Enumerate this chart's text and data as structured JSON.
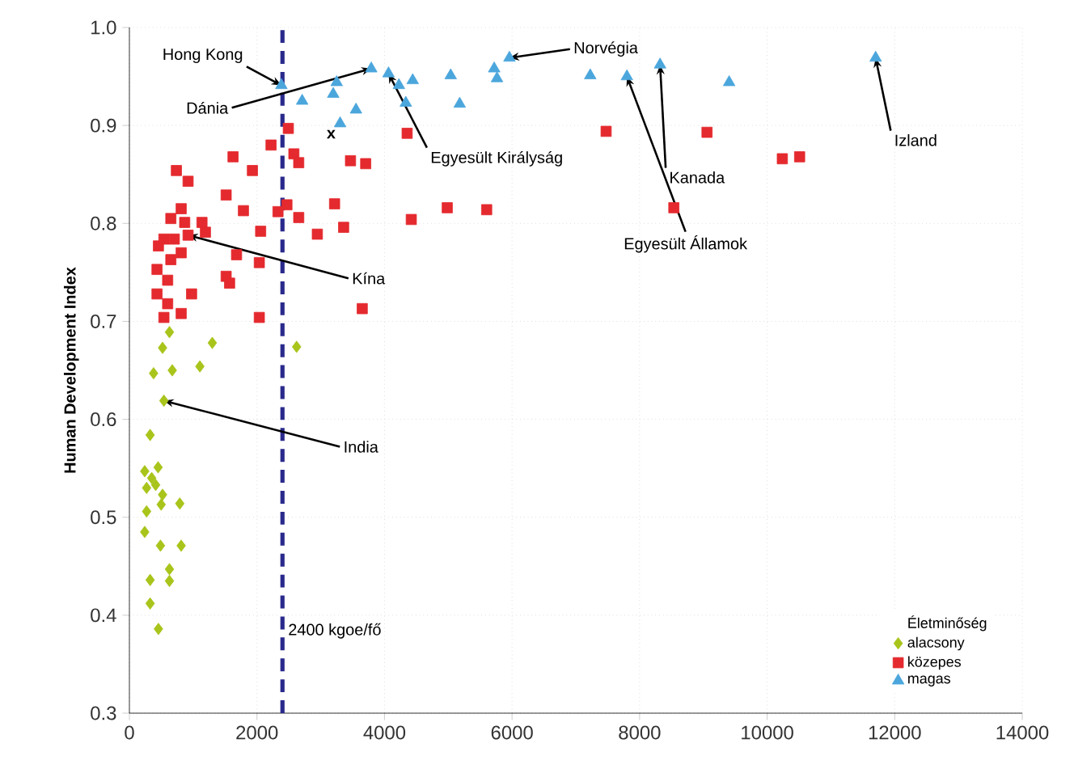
{
  "chart_data": {
    "type": "scatter",
    "ylabel": "Human Development Index",
    "legend_title": "Életminőség",
    "legend": "bottom right",
    "grid": true,
    "xlim": [
      0,
      14000
    ],
    "xticks": [
      0,
      2000,
      4000,
      6000,
      8000,
      10000,
      12000,
      14000
    ],
    "ylim": [
      0.3,
      1.0
    ],
    "yticks": [
      0.3,
      0.4,
      0.5,
      0.6,
      0.7,
      0.8,
      0.9,
      {
        "value": 1.0,
        "label": "1.0"
      }
    ],
    "ref_lines": [
      {
        "axis": "x",
        "value": 2400,
        "label": "2400 kgoe/fő",
        "color": "#2a2a8c",
        "line_style": "dashed"
      }
    ],
    "series": [
      {
        "name": "alacsony",
        "color": "#a9c41a",
        "marker": "diamond",
        "x": [
          240,
          450,
          270,
          412,
          520,
          270,
          240,
          498,
          790,
          487,
          812,
          628,
          325,
          628,
          325,
          455,
          325,
          541,
          379,
          672,
          520,
          628,
          1105,
          1300,
          2622,
          350
        ],
        "values": [
          0.547,
          0.551,
          0.53,
          0.533,
          0.523,
          0.506,
          0.485,
          0.513,
          0.514,
          0.471,
          0.471,
          0.447,
          0.436,
          0.435,
          0.412,
          0.386,
          0.584,
          0.619,
          0.647,
          0.65,
          0.673,
          0.689,
          0.654,
          0.678,
          0.674,
          0.54
        ]
      },
      {
        "name": "közepes",
        "color": "#e42a2e",
        "marker": "square",
        "x": [
          541,
          812,
          2037,
          3651,
          600,
          975,
          433,
          600,
          433,
          650,
          812,
          455,
          704,
          920,
          1192,
          867,
          1138,
          650,
          812,
          1680,
          1517,
          1571,
          2037,
          2058,
          1788,
          1517,
          737,
          920,
          1625,
          1929,
          2221,
          2492,
          2579,
          2655,
          2470,
          2330,
          2655,
          2947,
          3217,
          3359,
          3467,
          3705,
          4355,
          4420,
          4984,
          5602,
          7475,
          8537,
          9057,
          10238,
          10509,
          541
        ],
        "values": [
          0.704,
          0.708,
          0.704,
          0.713,
          0.718,
          0.728,
          0.728,
          0.742,
          0.753,
          0.763,
          0.77,
          0.777,
          0.784,
          0.788,
          0.791,
          0.801,
          0.801,
          0.805,
          0.815,
          0.768,
          0.746,
          0.739,
          0.76,
          0.792,
          0.813,
          0.829,
          0.854,
          0.843,
          0.868,
          0.854,
          0.88,
          0.897,
          0.871,
          0.862,
          0.819,
          0.812,
          0.806,
          0.789,
          0.82,
          0.796,
          0.864,
          0.861,
          0.892,
          0.804,
          0.816,
          0.814,
          0.894,
          0.816,
          0.893,
          0.866,
          0.868,
          0.784
        ]
      },
      {
        "name": "magas",
        "color": "#4ba6dc",
        "marker": "triangle",
        "x": [
          2383,
          2709,
          3250,
          3196,
          3304,
          3553,
          3792,
          4063,
          4334,
          4442,
          5038,
          5179,
          5720,
          5764,
          5959,
          7226,
          7801,
          8321,
          9404,
          11701,
          4226
        ],
        "values": [
          0.941,
          0.925,
          0.944,
          0.932,
          0.902,
          0.916,
          0.958,
          0.953,
          0.923,
          0.946,
          0.951,
          0.922,
          0.958,
          0.948,
          0.969,
          0.951,
          0.95,
          0.962,
          0.944,
          0.969,
          0.941
        ]
      }
    ],
    "annotations": [
      {
        "text": "Hong Kong",
        "x": 2383,
        "y": 0.941
      },
      {
        "text": "Dánia",
        "x": 3792,
        "y": 0.958
      },
      {
        "text": "Egyesült Királyság",
        "x": 4063,
        "y": 0.953
      },
      {
        "text": "Norvégia",
        "x": 5959,
        "y": 0.969
      },
      {
        "text": "Kanada",
        "x": 8321,
        "y": 0.962
      },
      {
        "text": "Egyesült Államok",
        "x": 7801,
        "y": 0.95
      },
      {
        "text": "Izland",
        "x": 11701,
        "y": 0.969
      },
      {
        "text": "Kína",
        "x": 920,
        "y": 0.788
      },
      {
        "text": "India",
        "x": 541,
        "y": 0.619
      },
      "x"
    ]
  }
}
